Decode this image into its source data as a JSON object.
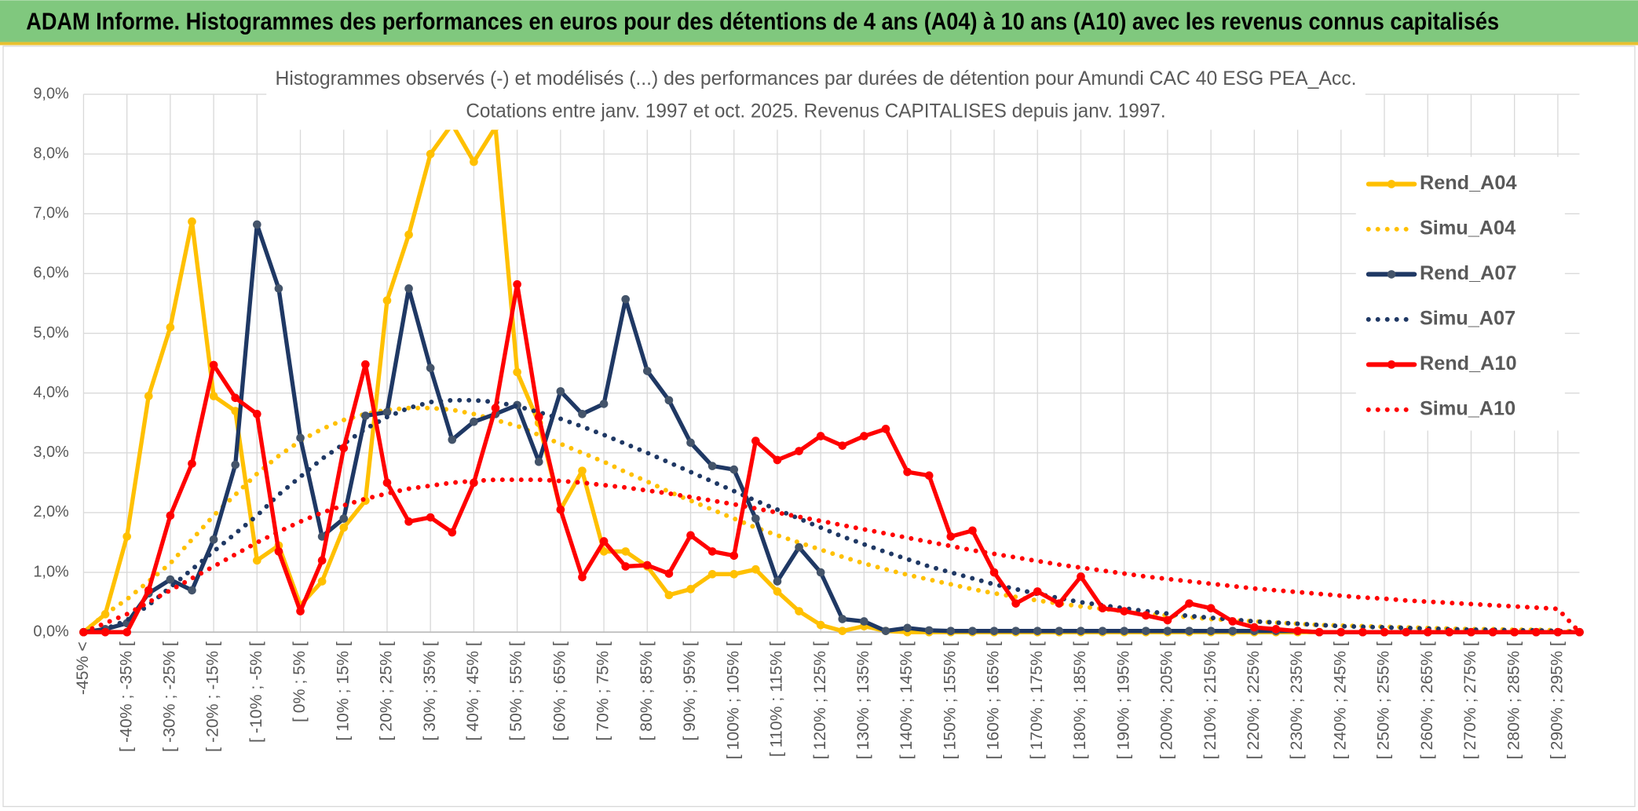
{
  "page_title": "ADAM Informe. Histogrammes des performances en euros pour des détentions de 4 ans (A04) à 10 ans (A10) avec les revenus connus capitalisés",
  "chart_data": {
    "type": "line",
    "title": "Histogrammes observés (-) et modélisés (...) des performances par durées de détention pour Amundi CAC 40 ESG PEA_Acc.",
    "subtitle": "Cotations entre janv. 1997 et oct. 2025. Revenus CAPITALISES depuis janv. 1997.",
    "categories": [
      "-45% <",
      null,
      "[ -40% ; -35% [",
      null,
      "[ -30% ; -25% [",
      null,
      "[ -20% ; -15% [",
      null,
      "[ -10% ; -5% [",
      null,
      "[ 0% ; 5% [",
      null,
      "[ 10% ; 15% [",
      null,
      "[ 20% ; 25% [",
      null,
      "[ 30% ; 35% [",
      null,
      "[ 40% ; 45% [",
      null,
      "[ 50% ; 55% [",
      null,
      "[ 60% ; 65% [",
      null,
      "[ 70% ; 75% [",
      null,
      "[ 80% ; 85% [",
      null,
      "[ 90% ; 95% [",
      null,
      "[ 100% ; 105% [",
      null,
      "[ 110% ; 115% [",
      null,
      "[ 120% ; 125% [",
      null,
      "[ 130% ; 135% [",
      null,
      "[ 140% ; 145% [",
      null,
      "[ 150% ; 155% [",
      null,
      "[ 160% ; 165% [",
      null,
      "[ 170% ; 175% [",
      null,
      "[ 180% ; 185% [",
      null,
      "[ 190% ; 195% [",
      null,
      "[ 200% ; 205% [",
      null,
      "[ 210% ; 215% [",
      null,
      "[ 220% ; 225% [",
      null,
      "[ 230% ; 235% [",
      null,
      "[ 240% ; 245% [",
      null,
      "[ 250% ; 255% [",
      null,
      "[ 260% ; 265% [",
      null,
      "[ 270% ; 275% [",
      null,
      "[ 280% ; 285% [",
      null,
      "[ 290% ; 295% [",
      null
    ],
    "series": [
      {
        "name": "Rend_A04",
        "color": "#ffc000",
        "marker_color": "#ffc000",
        "dash": "solid",
        "markers": true,
        "values": [
          0,
          0.3,
          1.6,
          3.95,
          5.1,
          6.87,
          3.95,
          3.7,
          1.2,
          1.45,
          0.45,
          0.85,
          1.75,
          2.2,
          5.55,
          6.65,
          8.0,
          8.5,
          7.87,
          8.45,
          4.35,
          3.5,
          2.05,
          2.7,
          1.35,
          1.35,
          1.1,
          0.62,
          0.72,
          0.97,
          0.97,
          1.05,
          0.68,
          0.35,
          0.12,
          0.02,
          0.1,
          0.02,
          0,
          0,
          0,
          0,
          0,
          0,
          0,
          0,
          0,
          0,
          0,
          0,
          0,
          0,
          0,
          0,
          0,
          0,
          0,
          0,
          0,
          0,
          0,
          0,
          0,
          0,
          0,
          0,
          0,
          0,
          0,
          0
        ]
      },
      {
        "name": "Simu_A04",
        "color": "#ffc000",
        "dash": "dotted",
        "markers": false,
        "values": [
          0,
          0.3,
          0.55,
          0.85,
          1.15,
          1.55,
          1.95,
          2.3,
          2.65,
          2.95,
          3.2,
          3.4,
          3.55,
          3.65,
          3.72,
          3.75,
          3.75,
          3.72,
          3.65,
          3.55,
          3.45,
          3.3,
          3.15,
          3.0,
          2.85,
          2.68,
          2.52,
          2.35,
          2.2,
          2.05,
          1.9,
          1.75,
          1.62,
          1.5,
          1.38,
          1.26,
          1.15,
          1.05,
          0.96,
          0.88,
          0.8,
          0.72,
          0.65,
          0.59,
          0.53,
          0.48,
          0.43,
          0.39,
          0.35,
          0.31,
          0.28,
          0.25,
          0.22,
          0.2,
          0.18,
          0.16,
          0.14,
          0.12,
          0.11,
          0.1,
          0.09,
          0.08,
          0.07,
          0.06,
          0.05,
          0.05,
          0.04,
          0.04,
          0.03,
          0
        ]
      },
      {
        "name": "Rend_A07",
        "color": "#1f3864",
        "marker_color": "#44546a",
        "dash": "solid",
        "markers": true,
        "values": [
          0,
          0.05,
          0.15,
          0.65,
          0.88,
          0.7,
          1.55,
          2.8,
          6.82,
          5.75,
          3.25,
          1.6,
          1.9,
          3.62,
          3.68,
          5.75,
          4.42,
          3.22,
          3.52,
          3.65,
          3.8,
          2.85,
          4.03,
          3.65,
          3.82,
          5.57,
          4.37,
          3.88,
          3.17,
          2.78,
          2.72,
          1.9,
          0.85,
          1.42,
          1.0,
          0.22,
          0.18,
          0.02,
          0.07,
          0.03,
          0.02,
          0.02,
          0.02,
          0.02,
          0.02,
          0.02,
          0.02,
          0.02,
          0.02,
          0.02,
          0.02,
          0.02,
          0.02,
          0.02,
          0.02,
          0.02,
          0.02,
          0,
          0,
          0,
          0,
          0,
          0,
          0,
          0,
          0,
          0,
          0,
          0,
          0
        ]
      },
      {
        "name": "Simu_A07",
        "color": "#1f3864",
        "dash": "dotted",
        "markers": false,
        "values": [
          0,
          0.05,
          0.2,
          0.45,
          0.75,
          1.05,
          1.35,
          1.65,
          1.95,
          2.3,
          2.6,
          2.9,
          3.15,
          3.4,
          3.6,
          3.75,
          3.85,
          3.88,
          3.88,
          3.85,
          3.78,
          3.68,
          3.57,
          3.44,
          3.3,
          3.15,
          3.0,
          2.84,
          2.68,
          2.52,
          2.36,
          2.2,
          2.05,
          1.9,
          1.75,
          1.6,
          1.47,
          1.34,
          1.22,
          1.1,
          1.0,
          0.9,
          0.8,
          0.72,
          0.64,
          0.57,
          0.5,
          0.45,
          0.4,
          0.35,
          0.31,
          0.27,
          0.24,
          0.21,
          0.18,
          0.16,
          0.14,
          0.12,
          0.1,
          0.09,
          0.08,
          0.07,
          0.06,
          0.05,
          0.04,
          0.04,
          0.03,
          0.03,
          0.02,
          0
        ]
      },
      {
        "name": "Rend_A10",
        "color": "#ff0000",
        "marker_color": "#ff0000",
        "dash": "solid",
        "markers": true,
        "values": [
          0,
          0,
          0,
          0.7,
          1.95,
          2.82,
          4.47,
          3.92,
          3.65,
          1.35,
          0.35,
          1.2,
          3.08,
          4.48,
          2.5,
          1.85,
          1.92,
          1.67,
          2.5,
          3.75,
          5.82,
          3.6,
          2.05,
          0.92,
          1.52,
          1.1,
          1.12,
          0.98,
          1.62,
          1.35,
          1.28,
          3.2,
          2.88,
          3.03,
          3.28,
          3.12,
          3.28,
          3.4,
          2.68,
          2.62,
          1.6,
          1.7,
          1.0,
          0.48,
          0.68,
          0.48,
          0.93,
          0.4,
          0.35,
          0.28,
          0.2,
          0.48,
          0.4,
          0.18,
          0.08,
          0.05,
          0.02,
          0,
          0,
          0,
          0,
          0,
          0,
          0,
          0,
          0,
          0,
          0,
          0,
          0
        ]
      },
      {
        "name": "Simu_A10",
        "color": "#ff0000",
        "dash": "dotted",
        "markers": false,
        "values": [
          0,
          0.15,
          0.3,
          0.5,
          0.7,
          0.9,
          1.1,
          1.3,
          1.5,
          1.68,
          1.85,
          2.0,
          2.12,
          2.23,
          2.32,
          2.4,
          2.45,
          2.5,
          2.53,
          2.55,
          2.55,
          2.55,
          2.53,
          2.5,
          2.46,
          2.42,
          2.37,
          2.32,
          2.26,
          2.2,
          2.14,
          2.07,
          2.0,
          1.93,
          1.86,
          1.79,
          1.72,
          1.65,
          1.58,
          1.51,
          1.44,
          1.37,
          1.31,
          1.25,
          1.19,
          1.13,
          1.08,
          1.03,
          0.98,
          0.93,
          0.89,
          0.85,
          0.81,
          0.77,
          0.73,
          0.7,
          0.67,
          0.64,
          0.61,
          0.58,
          0.56,
          0.53,
          0.51,
          0.49,
          0.47,
          0.45,
          0.43,
          0.41,
          0.39,
          0
        ]
      }
    ],
    "ylim": [
      0,
      9
    ],
    "yticks": [
      {
        "value": 0,
        "label": "0,0%"
      },
      {
        "value": 1,
        "label": "1,0%"
      },
      {
        "value": 2,
        "label": "2,0%"
      },
      {
        "value": 3,
        "label": "3,0%"
      },
      {
        "value": 4,
        "label": "4,0%"
      },
      {
        "value": 5,
        "label": "5,0%"
      },
      {
        "value": 6,
        "label": "6,0%"
      },
      {
        "value": 7,
        "label": "7,0%"
      },
      {
        "value": 8,
        "label": "8,0%"
      },
      {
        "value": 9,
        "label": "9,0%"
      }
    ],
    "grid": true,
    "legend": "right"
  }
}
